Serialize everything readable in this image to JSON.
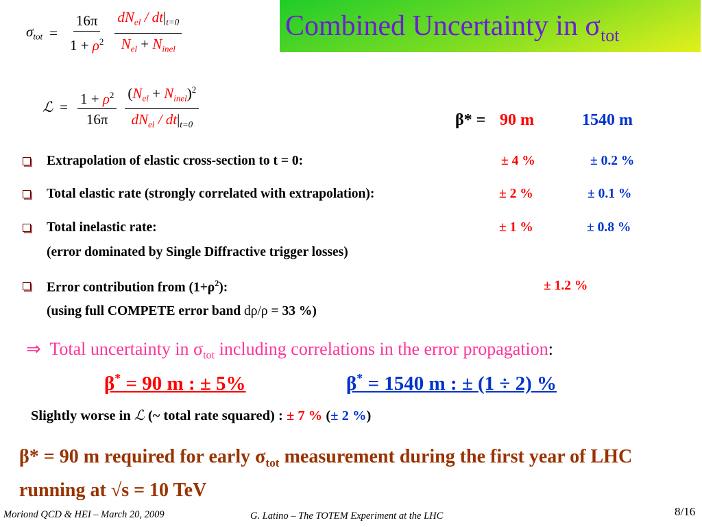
{
  "title": [
    {
      "t": "Combined Uncertainty in σ"
    },
    {
      "t": "tot",
      "s": "sub"
    }
  ],
  "formula_sigma": {
    "lhs": [
      {
        "t": "σ",
        "i": 1
      },
      {
        "t": "tot",
        "s": "sub",
        "i": 1
      }
    ],
    "eq": "=",
    "frac1_num": [
      {
        "t": "16π"
      }
    ],
    "frac1_den": [
      {
        "t": "1 + "
      },
      {
        "t": "ρ",
        "i": 1,
        "color": "#ff0000"
      },
      {
        "t": "2",
        "s": "sup"
      }
    ],
    "frac2_num": [
      {
        "t": "dN",
        "i": 1,
        "color": "#ff0000"
      },
      {
        "t": "el",
        "s": "sub",
        "i": 1,
        "color": "#ff0000"
      },
      {
        "t": " / dt",
        "i": 1,
        "color": "#ff0000"
      },
      {
        "t": "|"
      },
      {
        "t": "t=0",
        "s": "sub",
        "i": 1
      }
    ],
    "frac2_den": [
      {
        "t": "N",
        "i": 1,
        "color": "#ff0000"
      },
      {
        "t": "el",
        "s": "sub",
        "i": 1,
        "color": "#ff0000"
      },
      {
        "t": " + "
      },
      {
        "t": "N",
        "i": 1,
        "color": "#ff0000"
      },
      {
        "t": "inel",
        "s": "sub",
        "i": 1,
        "color": "#ff0000"
      }
    ]
  },
  "formula_lumi": {
    "lhs": [
      {
        "t": "ℒ",
        "i": 1
      }
    ],
    "eq": "=",
    "frac1_num": [
      {
        "t": "1 + "
      },
      {
        "t": "ρ",
        "i": 1,
        "color": "#ff0000"
      },
      {
        "t": "2",
        "s": "sup"
      }
    ],
    "frac1_den": [
      {
        "t": "16π"
      }
    ],
    "frac2_num": [
      {
        "t": "("
      },
      {
        "t": "N",
        "i": 1,
        "color": "#ff0000"
      },
      {
        "t": "el",
        "s": "sub",
        "i": 1,
        "color": "#ff0000"
      },
      {
        "t": " + "
      },
      {
        "t": "N",
        "i": 1,
        "color": "#ff0000"
      },
      {
        "t": "inel",
        "s": "sub",
        "i": 1,
        "color": "#ff0000"
      },
      {
        "t": ")"
      },
      {
        "t": "2",
        "s": "sup"
      }
    ],
    "frac2_den": [
      {
        "t": "dN",
        "i": 1,
        "color": "#ff0000"
      },
      {
        "t": "el",
        "s": "sub",
        "i": 1,
        "color": "#ff0000"
      },
      {
        "t": " / dt",
        "i": 1,
        "color": "#ff0000"
      },
      {
        "t": "|"
      },
      {
        "t": "t=0",
        "s": "sub",
        "i": 1
      }
    ]
  },
  "beta_header": {
    "label": "β* =",
    "value_1": "90 m",
    "value_2": "1540 m"
  },
  "bullets": [
    {
      "label": [
        {
          "t": "Extrapolation of elastic cross-section to t = 0:"
        }
      ],
      "error_1": "± 4 %",
      "error_2": "± 0.2 %"
    },
    {
      "label": [
        {
          "t": "Total elastic rate (strongly correlated with extrapolation):"
        }
      ],
      "error_1": "± 2 %",
      "error_2": "± 0.1 %"
    },
    {
      "label": [
        {
          "t": "Total inelastic rate:"
        }
      ],
      "note": [
        {
          "t": "(error dominated by Single Diffractive trigger losses)"
        }
      ],
      "error_1": "± 1 %",
      "error_2": "± 0.8 %"
    },
    {
      "label": [
        {
          "t": "Error contribution from (1+ρ"
        },
        {
          "t": "2",
          "s": "sup"
        },
        {
          "t": "):"
        }
      ],
      "note": [
        {
          "t": "(using full COMPETE error band "
        },
        {
          "t": "dρ/ρ",
          "w": "normal"
        },
        {
          "t": " = 33 %)"
        }
      ],
      "error_1": "± 1.2 %"
    }
  ],
  "conclusion": {
    "arrow": "⇒",
    "text": [
      {
        "t": "Total uncertainty in σ"
      },
      {
        "t": "tot",
        "s": "sub"
      },
      {
        "t": " including correlations in the error propagation"
      },
      {
        "t": ":",
        "color": "#000000"
      }
    ]
  },
  "results": [
    [
      {
        "t": "β"
      },
      {
        "t": "*",
        "s": "sup"
      },
      {
        "t": " = 90 m : ± 5%"
      }
    ],
    [
      {
        "t": "β"
      },
      {
        "t": "*",
        "s": "sup"
      },
      {
        "t": " = 1540 m : ± (1 ÷ 2) %"
      }
    ]
  ],
  "lumi_note": [
    {
      "t": "Slightly worse in "
    },
    {
      "t": "ℒ",
      "i": 1,
      "w": "normal"
    },
    {
      "t": " (~ total rate squared) : "
    },
    {
      "t": "± 7 %",
      "color": "#ff0000"
    },
    {
      "t": "  ("
    },
    {
      "t": "± 2 %",
      "color": "#0033cc"
    },
    {
      "t": ")"
    }
  ],
  "statement": [
    {
      "t": "β* = 90 m required for early σ"
    },
    {
      "t": "tot",
      "s": "sub"
    },
    {
      "t": " measurement during the first year of LHC running at √s = 10 TeV"
    }
  ],
  "footer": {
    "left": "Moriond QCD & HEI – March 20, 2009",
    "center": "G. Latino – The TOTEM Experiment at the LHC",
    "page": "8/16"
  }
}
